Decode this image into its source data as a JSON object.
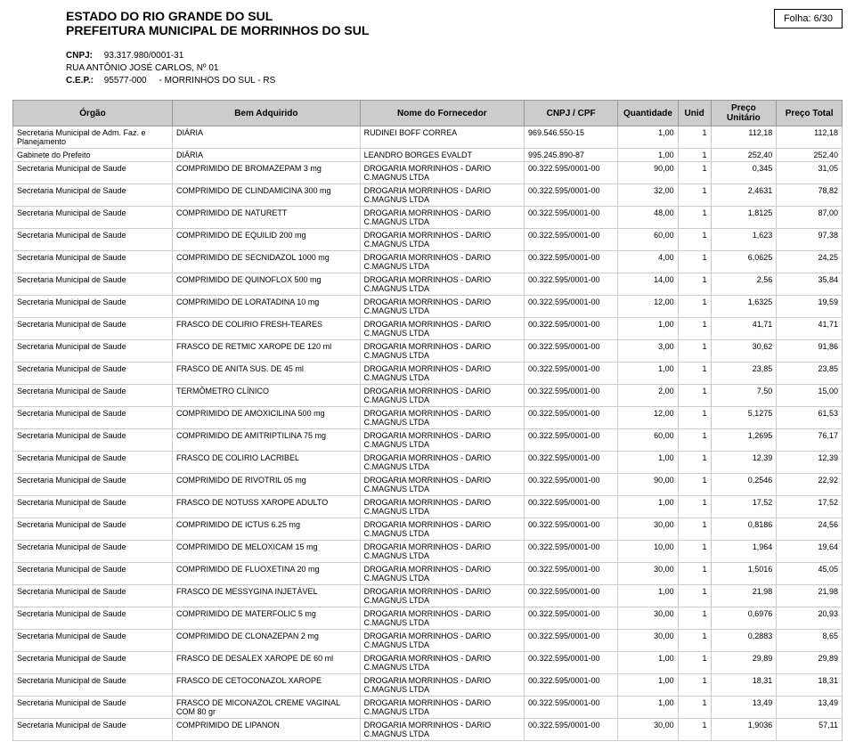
{
  "header": {
    "line1": "ESTADO DO RIO GRANDE DO SUL",
    "line2": "PREFEITURA MUNICIPAL DE MORRINHOS DO SUL",
    "folha": "Folha: 6/30",
    "cnpj_label": "CNPJ:",
    "cnpj_value": "93.317.980/0001-31",
    "rua": "RUA ANTÔNIO JOSÉ CARLOS, Nº 01",
    "cep_label": "C.E.P.:",
    "cep_value": "95577-000",
    "cep_city": "- MORRINHOS DO SUL - RS"
  },
  "columns": {
    "orgao": "Órgão",
    "bem": "Bem Adquirido",
    "fornecedor": "Nome do Fornecedor",
    "cnpj": "CNPJ / CPF",
    "quantidade": "Quantidade",
    "unid": "Unid",
    "preco_unit": "Preço Unitário",
    "preco_total": "Preço Total"
  },
  "rows": [
    {
      "orgao": "Secretaria Municipal de Adm. Faz. e Planejamento",
      "bem": "DIÁRIA",
      "forn": "RUDINEI BOFF CORREA",
      "cnpj": "969.546.550-15",
      "qtd": "1,00",
      "unid": "1",
      "unit": "112,18",
      "total": "112,18"
    },
    {
      "orgao": "Gabinete do Prefeito",
      "bem": "DIÁRIA",
      "forn": "LEANDRO BORGES EVALDT",
      "cnpj": "995.245.890-87",
      "qtd": "1,00",
      "unid": "1",
      "unit": "252,40",
      "total": "252,40"
    },
    {
      "orgao": "Secretaria Municipal de Saude",
      "bem": "COMPRIMIDO DE BROMAZEPAM 3 mg",
      "forn": "DROGARIA MORRINHOS - DARIO C.MAGNUS LTDA",
      "cnpj": "00.322.595/0001-00",
      "qtd": "90,00",
      "unid": "1",
      "unit": "0,345",
      "total": "31,05"
    },
    {
      "orgao": "Secretaria Municipal de Saude",
      "bem": "COMPRIMIDO DE CLINDAMICINA 300 mg",
      "forn": "DROGARIA MORRINHOS - DARIO C.MAGNUS LTDA",
      "cnpj": "00.322.595/0001-00",
      "qtd": "32,00",
      "unid": "1",
      "unit": "2,4631",
      "total": "78,82"
    },
    {
      "orgao": "Secretaria Municipal de Saude",
      "bem": "COMPRIMIDO DE NATURETT",
      "forn": "DROGARIA MORRINHOS - DARIO C.MAGNUS LTDA",
      "cnpj": "00.322.595/0001-00",
      "qtd": "48,00",
      "unid": "1",
      "unit": "1,8125",
      "total": "87,00"
    },
    {
      "orgao": "Secretaria Municipal de Saude",
      "bem": "COMPRIMIDO DE EQUILID 200 mg",
      "forn": "DROGARIA MORRINHOS - DARIO C.MAGNUS LTDA",
      "cnpj": "00.322.595/0001-00",
      "qtd": "60,00",
      "unid": "1",
      "unit": "1,623",
      "total": "97,38"
    },
    {
      "orgao": "Secretaria Municipal de Saude",
      "bem": "COMPRIMIDO DE SECNIDAZOL 1000 mg",
      "forn": "DROGARIA MORRINHOS - DARIO C.MAGNUS LTDA",
      "cnpj": "00.322.595/0001-00",
      "qtd": "4,00",
      "unid": "1",
      "unit": "6,0625",
      "total": "24,25"
    },
    {
      "orgao": "Secretaria Municipal de Saude",
      "bem": "COMPRIMIDO DE QUINOFLOX 500 mg",
      "forn": "DROGARIA MORRINHOS - DARIO C.MAGNUS LTDA",
      "cnpj": "00.322.595/0001-00",
      "qtd": "14,00",
      "unid": "1",
      "unit": "2,56",
      "total": "35,84"
    },
    {
      "orgao": "Secretaria Municipal de Saude",
      "bem": "COMPRIMIDO DE LORATADINA 10 mg",
      "forn": "DROGARIA MORRINHOS - DARIO C.MAGNUS LTDA",
      "cnpj": "00.322.595/0001-00",
      "qtd": "12,00",
      "unid": "1",
      "unit": "1,6325",
      "total": "19,59"
    },
    {
      "orgao": "Secretaria Municipal de Saude",
      "bem": "FRASCO DE COLIRIO FRESH-TEARES",
      "forn": "DROGARIA MORRINHOS - DARIO C.MAGNUS LTDA",
      "cnpj": "00.322.595/0001-00",
      "qtd": "1,00",
      "unid": "1",
      "unit": "41,71",
      "total": "41,71"
    },
    {
      "orgao": "Secretaria Municipal de Saude",
      "bem": "FRASCO DE RETMIC XAROPE DE 120 ml",
      "forn": "DROGARIA MORRINHOS - DARIO C.MAGNUS LTDA",
      "cnpj": "00.322.595/0001-00",
      "qtd": "3,00",
      "unid": "1",
      "unit": "30,62",
      "total": "91,86"
    },
    {
      "orgao": "Secretaria Municipal de Saude",
      "bem": "FRASCO DE ANITA SUS. DE 45 ml",
      "forn": "DROGARIA MORRINHOS - DARIO C.MAGNUS LTDA",
      "cnpj": "00.322.595/0001-00",
      "qtd": "1,00",
      "unid": "1",
      "unit": "23,85",
      "total": "23,85"
    },
    {
      "orgao": "Secretaria Municipal de Saude",
      "bem": "TERMÔMETRO CLÍNICO",
      "forn": "DROGARIA MORRINHOS - DARIO C.MAGNUS LTDA",
      "cnpj": "00.322.595/0001-00",
      "qtd": "2,00",
      "unid": "1",
      "unit": "7,50",
      "total": "15,00"
    },
    {
      "orgao": "Secretaria Municipal de Saude",
      "bem": "COMPRIMIDO DE AMOXICILINA 500 mg",
      "forn": "DROGARIA MORRINHOS - DARIO C.MAGNUS LTDA",
      "cnpj": "00.322.595/0001-00",
      "qtd": "12,00",
      "unid": "1",
      "unit": "5,1275",
      "total": "61,53"
    },
    {
      "orgao": "Secretaria Municipal de Saude",
      "bem": "COMPRIMIDO DE AMITRIPTILINA 75 mg",
      "forn": "DROGARIA MORRINHOS - DARIO C.MAGNUS LTDA",
      "cnpj": "00.322.595/0001-00",
      "qtd": "60,00",
      "unid": "1",
      "unit": "1,2695",
      "total": "76,17"
    },
    {
      "orgao": "Secretaria Municipal de Saude",
      "bem": "FRASCO DE COLIRIO LACRIBEL",
      "forn": "DROGARIA MORRINHOS - DARIO C.MAGNUS LTDA",
      "cnpj": "00.322.595/0001-00",
      "qtd": "1,00",
      "unid": "1",
      "unit": "12,39",
      "total": "12,39"
    },
    {
      "orgao": "Secretaria Municipal de Saude",
      "bem": "COMPRIMIDO DE RIVOTRIL 05 mg",
      "forn": "DROGARIA MORRINHOS - DARIO C.MAGNUS LTDA",
      "cnpj": "00.322.595/0001-00",
      "qtd": "90,00",
      "unid": "1",
      "unit": "0,2546",
      "total": "22,92"
    },
    {
      "orgao": "Secretaria Municipal de Saude",
      "bem": "FRASCO DE NOTUSS XAROPE ADULTO",
      "forn": "DROGARIA MORRINHOS - DARIO C.MAGNUS LTDA",
      "cnpj": "00.322.595/0001-00",
      "qtd": "1,00",
      "unid": "1",
      "unit": "17,52",
      "total": "17,52"
    },
    {
      "orgao": "Secretaria Municipal de Saude",
      "bem": "COMPRIMIDO DE ICTUS 6.25 mg",
      "forn": "DROGARIA MORRINHOS - DARIO C.MAGNUS LTDA",
      "cnpj": "00.322.595/0001-00",
      "qtd": "30,00",
      "unid": "1",
      "unit": "0,8186",
      "total": "24,56"
    },
    {
      "orgao": "Secretaria Municipal de Saude",
      "bem": "COMPRIMIDO DE MELOXICAM 15 mg",
      "forn": "DROGARIA MORRINHOS - DARIO C.MAGNUS LTDA",
      "cnpj": "00.322.595/0001-00",
      "qtd": "10,00",
      "unid": "1",
      "unit": "1,964",
      "total": "19,64"
    },
    {
      "orgao": "Secretaria Municipal de Saude",
      "bem": "COMPRIMIDO DE FLUOXETINA 20 mg",
      "forn": "DROGARIA MORRINHOS - DARIO C.MAGNUS LTDA",
      "cnpj": "00.322.595/0001-00",
      "qtd": "30,00",
      "unid": "1",
      "unit": "1,5016",
      "total": "45,05"
    },
    {
      "orgao": "Secretaria Municipal de Saude",
      "bem": "FRASCO DE MESSYGINA INJETÁVEL",
      "forn": "DROGARIA MORRINHOS - DARIO C.MAGNUS LTDA",
      "cnpj": "00.322.595/0001-00",
      "qtd": "1,00",
      "unid": "1",
      "unit": "21,98",
      "total": "21,98"
    },
    {
      "orgao": "Secretaria Municipal de Saude",
      "bem": "COMPRIMIDO DE MATERFOLIC 5 mg",
      "forn": "DROGARIA MORRINHOS - DARIO C.MAGNUS LTDA",
      "cnpj": "00.322.595/0001-00",
      "qtd": "30,00",
      "unid": "1",
      "unit": "0,6976",
      "total": "20,93"
    },
    {
      "orgao": "Secretaria Municipal de Saude",
      "bem": "COMPRIMIDO DE CLONAZEPAN 2 mg",
      "forn": "DROGARIA MORRINHOS - DARIO C.MAGNUS LTDA",
      "cnpj": "00.322.595/0001-00",
      "qtd": "30,00",
      "unid": "1",
      "unit": "0,2883",
      "total": "8,65"
    },
    {
      "orgao": "Secretaria Municipal de Saude",
      "bem": "FRASCO DE DESALEX XAROPE DE 60 ml",
      "forn": "DROGARIA MORRINHOS - DARIO C.MAGNUS LTDA",
      "cnpj": "00.322.595/0001-00",
      "qtd": "1,00",
      "unid": "1",
      "unit": "29,89",
      "total": "29,89"
    },
    {
      "orgao": "Secretaria Municipal de Saude",
      "bem": "FRASCO DE CETOCONAZOL XAROPE",
      "forn": "DROGARIA MORRINHOS - DARIO C.MAGNUS LTDA",
      "cnpj": "00.322.595/0001-00",
      "qtd": "1,00",
      "unid": "1",
      "unit": "18,31",
      "total": "18,31"
    },
    {
      "orgao": "Secretaria Municipal de Saude",
      "bem": "FRASCO DE MICONAZOL CREME VAGINAL COM 80 gr",
      "forn": "DROGARIA MORRINHOS - DARIO C.MAGNUS LTDA",
      "cnpj": "00.322.595/0001-00",
      "qtd": "1,00",
      "unid": "1",
      "unit": "13,49",
      "total": "13,49"
    },
    {
      "orgao": "Secretaria Municipal de Saude",
      "bem": "COMPRIMIDO DE LIPANON",
      "forn": "DROGARIA MORRINHOS - DARIO C.MAGNUS LTDA",
      "cnpj": "00.322.595/0001-00",
      "qtd": "30,00",
      "unid": "1",
      "unit": "1,9036",
      "total": "57,11"
    }
  ]
}
